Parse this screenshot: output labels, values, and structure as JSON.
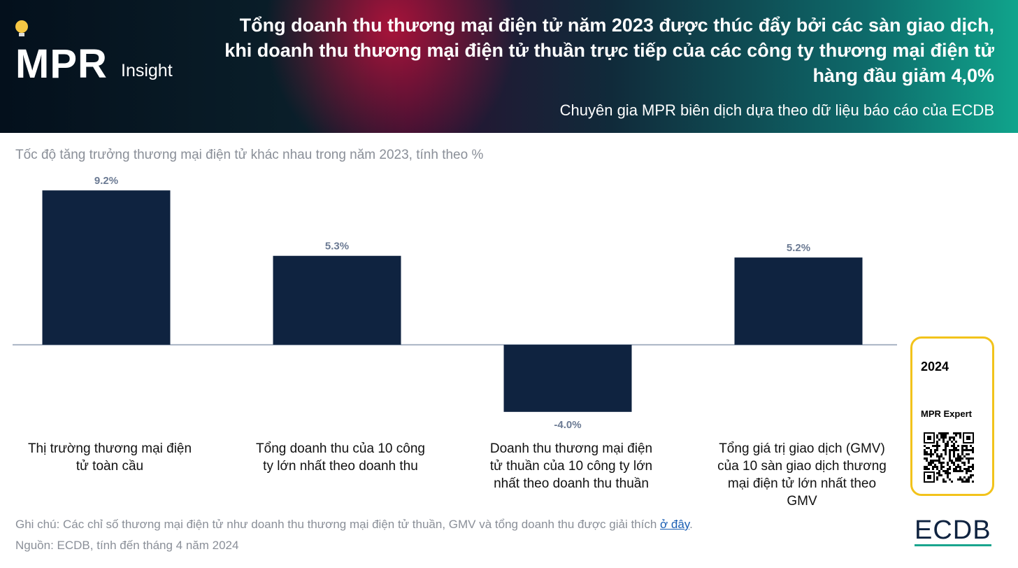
{
  "header": {
    "logo": "MPR",
    "logo_sub": "Insight",
    "title": "Tổng doanh thu thương mại điện tử năm 2023 được thúc đẩy bởi các sàn giao dịch, khi doanh thu thương mại điện tử thuần trực tiếp của các công ty thương mại điện tử hàng đầu giảm 4,0%",
    "subtitle": "Chuyên gia MPR biên dịch dựa theo dữ liệu báo cáo của  ECDB"
  },
  "chart_data": {
    "type": "bar",
    "title": "Tốc độ tăng trưởng thương mại điện tử khác nhau trong năm 2023, tính theo %",
    "categories": [
      "Thị trường thương mại điện tử toàn cầu",
      "Tổng doanh thu của 10 công ty lớn nhất theo doanh thu",
      "Doanh thu thương mại điện tử thuần của 10 công ty lớn nhất theo doanh thu thuần",
      "Tổng giá trị giao dịch (GMV) của 10 sàn giao dịch thương mại điện tử lớn nhất theo GMV"
    ],
    "values": [
      9.2,
      5.3,
      -4.0,
      5.2
    ],
    "value_labels": [
      "9.2%",
      "5.3%",
      "-4.0%",
      "5.2%"
    ],
    "color": "#0f2340",
    "ylim": [
      -4.8,
      10
    ]
  },
  "footer": {
    "note": "Ghi chú: Các chỉ số thương mại điện tử như doanh thu thương mại điện tử thuần, GMV và tổng doanh thu được giải thích ",
    "note_link": "ở đây",
    "note_end": ".",
    "source": "Nguồn: ECDB, tính đến tháng 4 năm 2024",
    "brand": "ECDB"
  },
  "card": {
    "year": "2024",
    "label": "MPR Expert"
  }
}
